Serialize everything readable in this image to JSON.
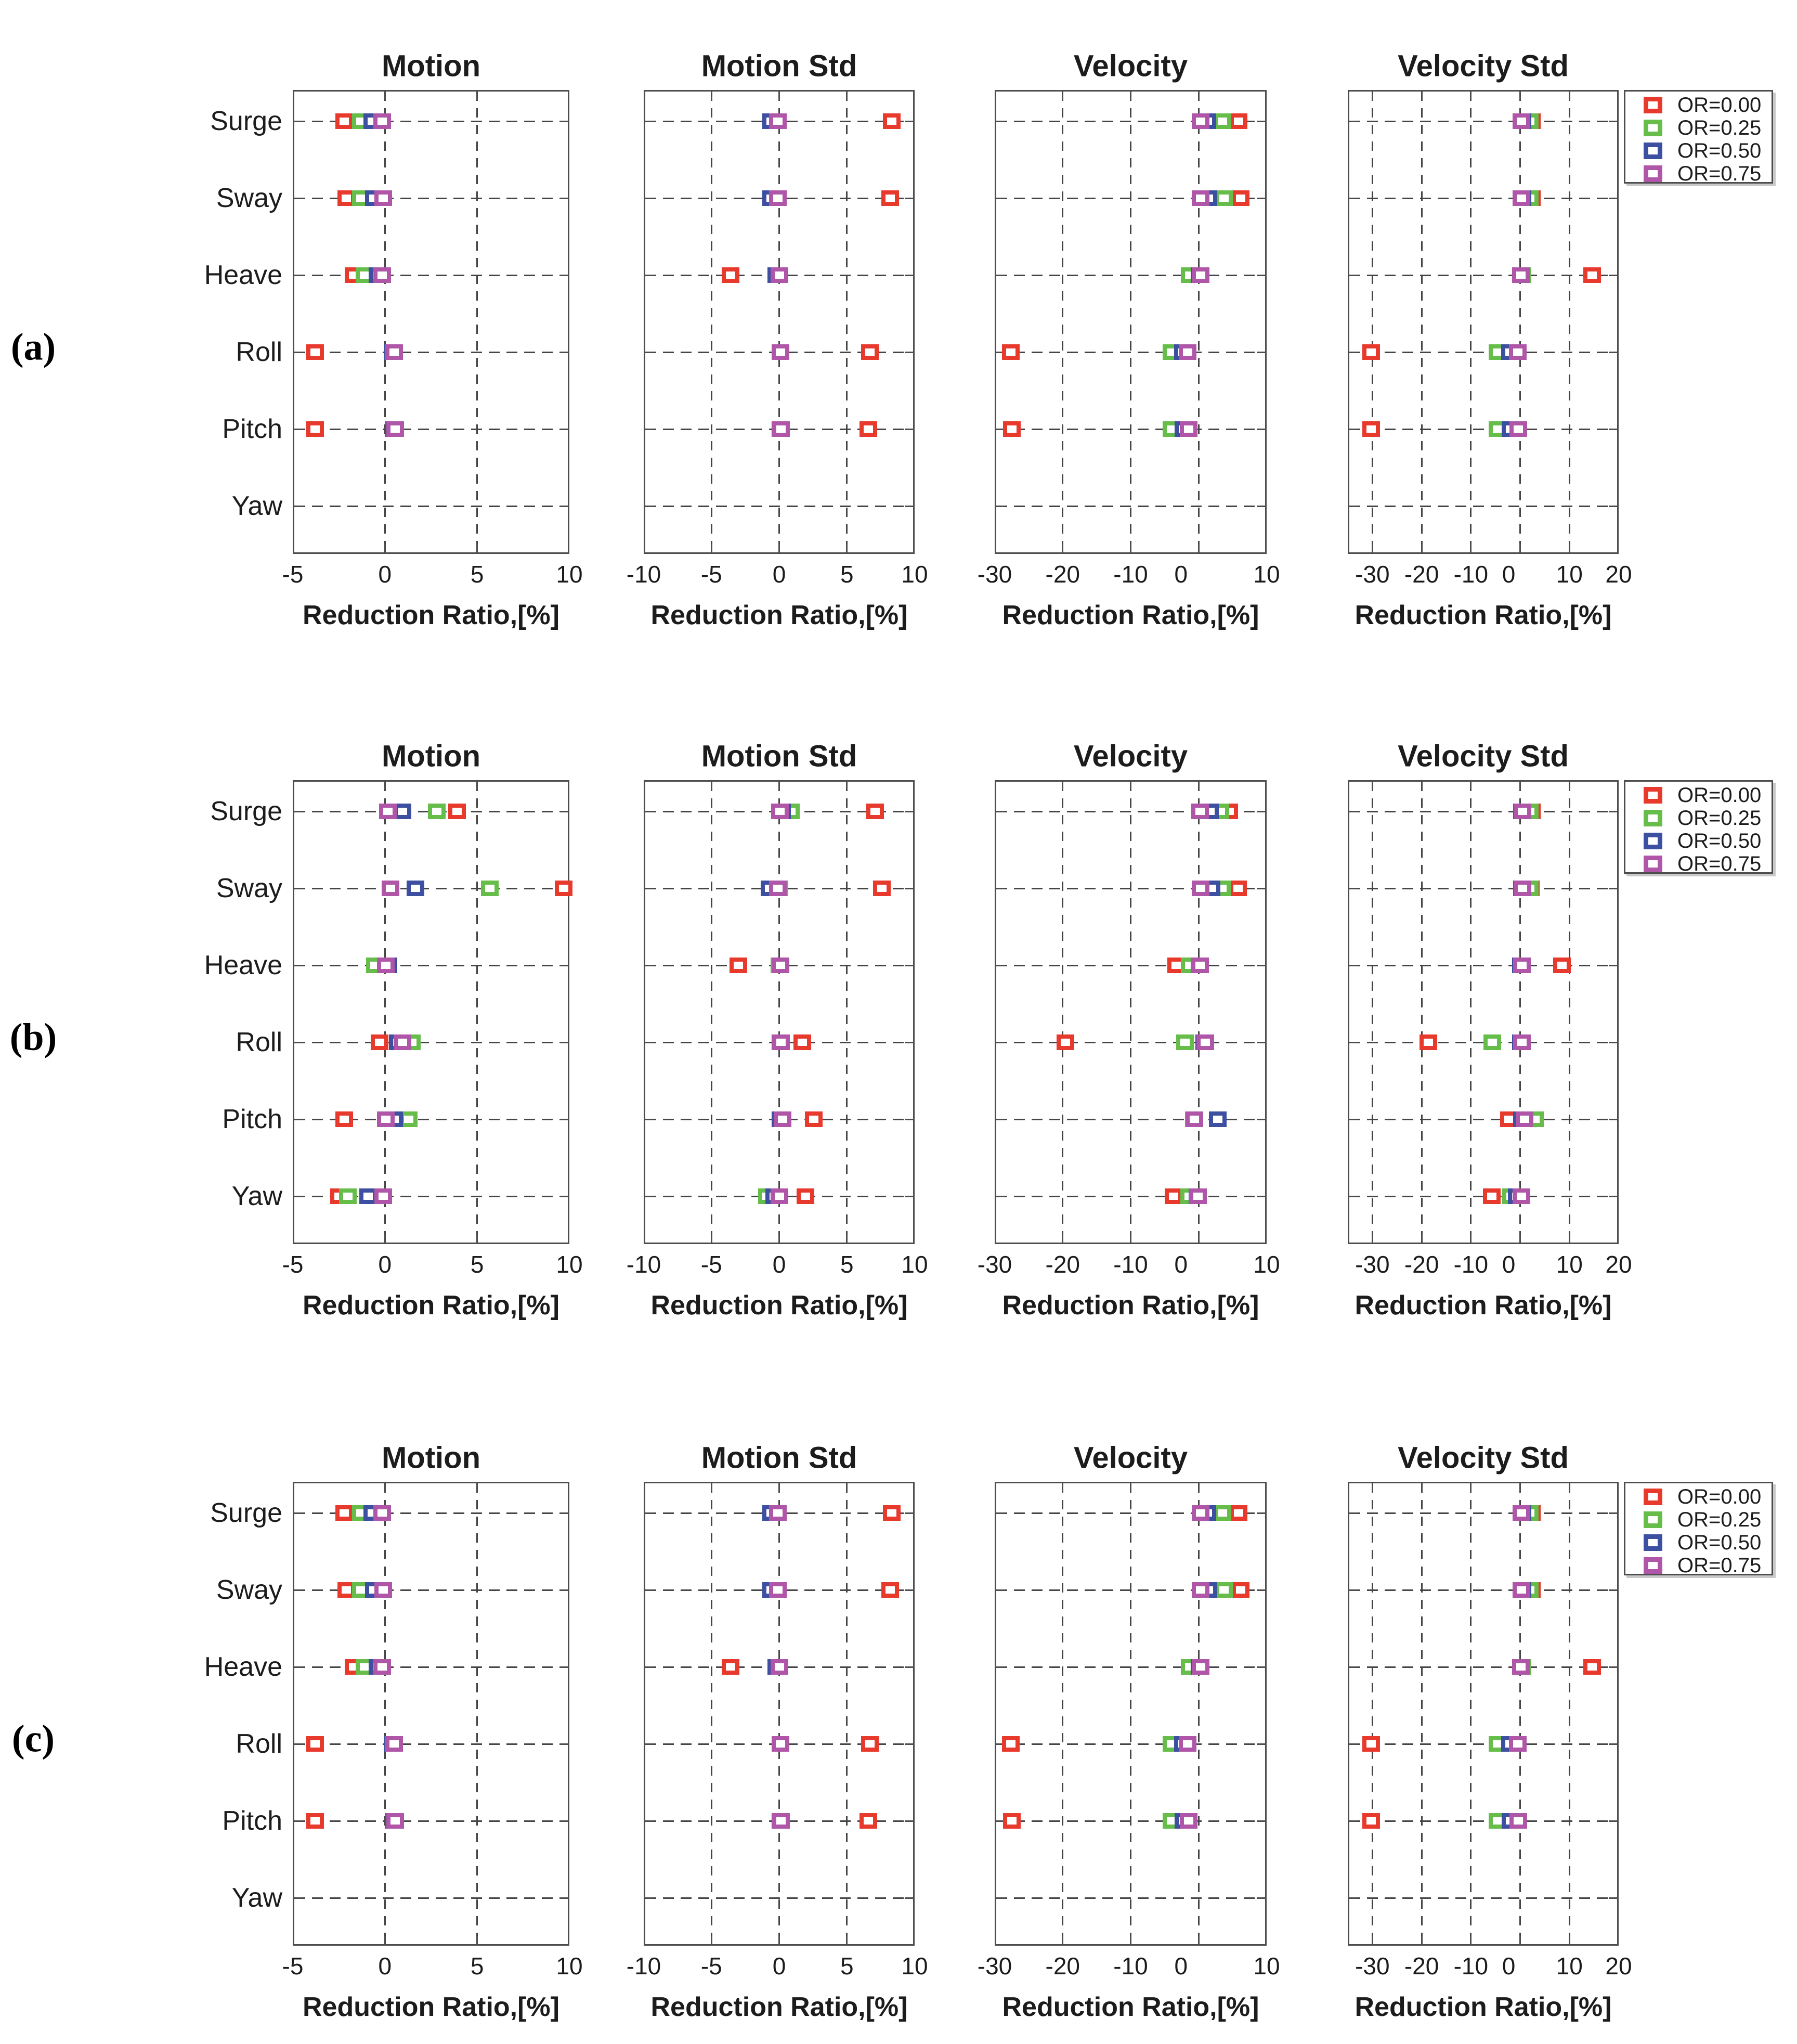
{
  "figure": {
    "row_tags": [
      "(a)",
      "(b)",
      "(c)"
    ],
    "column_titles": [
      "Motion",
      "Motion Std",
      "Velocity",
      "Velocity Std"
    ],
    "x_axis_label": "Reduction Ratio,[%]",
    "categories": [
      "Surge",
      "Sway",
      "Heave",
      "Roll",
      "Pitch",
      "Yaw"
    ],
    "legend": {
      "position": "top-right-outside",
      "entries": [
        {
          "label": "OR=0.00",
          "color": "#e8392d"
        },
        {
          "label": "OR=0.25",
          "color": "#66bd4a"
        },
        {
          "label": "OR=0.50",
          "color": "#3d4fa1"
        },
        {
          "label": "OR=0.75",
          "color": "#af56a8"
        }
      ]
    },
    "colors": {
      "marker_red": "#e8392d",
      "marker_green": "#66bd4a",
      "marker_blue": "#3d4fa1",
      "marker_magenta": "#af56a8",
      "gridline": "#454545",
      "axis_frame": "#4d4d4d",
      "text": "#1c1c1c"
    }
  },
  "chart_data": [
    {
      "panel": "a",
      "type": "scatter",
      "title": "Motion",
      "xlabel": "Reduction Ratio,[%]",
      "xlim": [
        -5,
        10
      ],
      "xticks": [
        -5,
        0,
        5,
        10
      ],
      "grid": true,
      "categories": [
        "Surge",
        "Sway",
        "Heave",
        "Roll",
        "Pitch",
        "Yaw"
      ],
      "series": [
        {
          "name": "OR=0.00",
          "values": [
            -2.2,
            -2.1,
            -1.7,
            -3.8,
            -3.8,
            null
          ]
        },
        {
          "name": "OR=0.25",
          "values": [
            -1.3,
            -1.3,
            -1.1,
            0.45,
            0.5,
            null
          ]
        },
        {
          "name": "OR=0.50",
          "values": [
            -0.7,
            -0.6,
            -0.4,
            0.45,
            0.5,
            null
          ]
        },
        {
          "name": "OR=0.75",
          "values": [
            -0.15,
            -0.1,
            -0.15,
            0.5,
            0.55,
            null
          ]
        }
      ]
    },
    {
      "panel": "a",
      "type": "scatter",
      "title": "Motion Std",
      "xlabel": "Reduction Ratio,[%]",
      "xlim": [
        -10,
        10
      ],
      "xticks": [
        -10,
        -5,
        0,
        5,
        10
      ],
      "grid": true,
      "categories": [
        "Surge",
        "Sway",
        "Heave",
        "Roll",
        "Pitch",
        "Yaw"
      ],
      "series": [
        {
          "name": "OR=0.00",
          "values": [
            8.3,
            8.2,
            -3.6,
            6.7,
            6.6,
            null
          ]
        },
        {
          "name": "OR=0.25",
          "values": [
            -0.1,
            -0.1,
            -0.1,
            0.1,
            0.1,
            null
          ]
        },
        {
          "name": "OR=0.50",
          "values": [
            -0.6,
            -0.6,
            -0.2,
            0.1,
            0.1,
            null
          ]
        },
        {
          "name": "OR=0.75",
          "values": [
            -0.1,
            -0.1,
            0.0,
            0.1,
            0.15,
            null
          ]
        }
      ]
    },
    {
      "panel": "a",
      "type": "scatter",
      "title": "Velocity",
      "xlabel": "Reduction Ratio,[%]",
      "xlim": [
        -30,
        10
      ],
      "xticks": [
        -30,
        -20,
        -10,
        0,
        10
      ],
      "grid": true,
      "categories": [
        "Surge",
        "Sway",
        "Heave",
        "Roll",
        "Pitch",
        "Yaw"
      ],
      "series": [
        {
          "name": "OR=0.00",
          "values": [
            5.9,
            6.2,
            0.1,
            -27.6,
            -27.5,
            null
          ]
        },
        {
          "name": "OR=0.25",
          "values": [
            3.5,
            3.7,
            -1.3,
            -4.0,
            -4.0,
            null
          ]
        },
        {
          "name": "OR=0.50",
          "values": [
            1.3,
            1.4,
            0.1,
            -2.3,
            -2.2,
            null
          ]
        },
        {
          "name": "OR=0.75",
          "values": [
            0.3,
            0.3,
            0.3,
            -1.6,
            -1.5,
            null
          ]
        }
      ]
    },
    {
      "panel": "a",
      "type": "scatter",
      "title": "Velocity Std",
      "xlabel": "Reduction Ratio,[%]",
      "xlim": [
        -35,
        20
      ],
      "xticks": [
        -30,
        -20,
        -10,
        0,
        10,
        20
      ],
      "grid": true,
      "categories": [
        "Surge",
        "Sway",
        "Heave",
        "Roll",
        "Pitch",
        "Yaw"
      ],
      "series": [
        {
          "name": "OR=0.00",
          "values": [
            2.4,
            2.4,
            14.6,
            -30.3,
            -30.3,
            null
          ]
        },
        {
          "name": "OR=0.25",
          "values": [
            2.0,
            2.0,
            0.4,
            -4.6,
            -4.6,
            null
          ]
        },
        {
          "name": "OR=0.50",
          "values": [
            0.5,
            0.5,
            0.2,
            -2.1,
            -2.0,
            null
          ]
        },
        {
          "name": "OR=0.75",
          "values": [
            0.3,
            0.3,
            0.2,
            -0.5,
            -0.4,
            null
          ]
        }
      ]
    },
    {
      "panel": "b",
      "type": "scatter",
      "title": "Motion",
      "xlabel": "Reduction Ratio,[%]",
      "xlim": [
        -5,
        10
      ],
      "xticks": [
        -5,
        0,
        5,
        10
      ],
      "grid": true,
      "categories": [
        "Surge",
        "Sway",
        "Heave",
        "Roll",
        "Pitch",
        "Yaw"
      ],
      "series": [
        {
          "name": "OR=0.00",
          "values": [
            3.9,
            9.7,
            -0.35,
            -0.3,
            -2.2,
            -2.5
          ]
        },
        {
          "name": "OR=0.25",
          "values": [
            2.8,
            5.7,
            -0.55,
            1.45,
            1.3,
            -2.0
          ]
        },
        {
          "name": "OR=0.50",
          "values": [
            0.95,
            1.65,
            0.2,
            0.7,
            0.5,
            -0.9
          ]
        },
        {
          "name": "OR=0.75",
          "values": [
            0.15,
            0.3,
            0.05,
            0.95,
            0.05,
            -0.1
          ]
        }
      ]
    },
    {
      "panel": "b",
      "type": "scatter",
      "title": "Motion Std",
      "xlabel": "Reduction Ratio,[%]",
      "xlim": [
        -10,
        10
      ],
      "xticks": [
        -10,
        -5,
        0,
        5,
        10
      ],
      "grid": true,
      "categories": [
        "Surge",
        "Sway",
        "Heave",
        "Roll",
        "Pitch",
        "Yaw"
      ],
      "series": [
        {
          "name": "OR=0.00",
          "values": [
            7.1,
            7.6,
            -3.0,
            1.7,
            2.55,
            1.95
          ]
        },
        {
          "name": "OR=0.25",
          "values": [
            0.85,
            0.0,
            0.0,
            0.1,
            0.1,
            -0.9
          ]
        },
        {
          "name": "OR=0.50",
          "values": [
            0.2,
            -0.7,
            0.1,
            0.1,
            0.1,
            -0.35
          ]
        },
        {
          "name": "OR=0.75",
          "values": [
            0.05,
            -0.1,
            0.1,
            0.15,
            0.25,
            0.0
          ]
        }
      ]
    },
    {
      "panel": "b",
      "type": "scatter",
      "title": "Velocity",
      "xlabel": "Reduction Ratio,[%]",
      "xlim": [
        -30,
        10
      ],
      "xticks": [
        -30,
        -20,
        -10,
        0,
        10
      ],
      "grid": true,
      "categories": [
        "Surge",
        "Sway",
        "Heave",
        "Roll",
        "Pitch",
        "Yaw"
      ],
      "series": [
        {
          "name": "OR=0.00",
          "values": [
            4.5,
            5.8,
            -3.3,
            -19.6,
            -0.6,
            -3.7
          ]
        },
        {
          "name": "OR=0.25",
          "values": [
            3.2,
            3.4,
            -1.3,
            -2.0,
            -0.7,
            -1.4
          ]
        },
        {
          "name": "OR=0.50",
          "values": [
            1.7,
            1.9,
            0.1,
            0.8,
            2.8,
            -0.2
          ]
        },
        {
          "name": "OR=0.75",
          "values": [
            0.2,
            0.25,
            0.2,
            1.0,
            -0.65,
            -0.1
          ]
        }
      ]
    },
    {
      "panel": "b",
      "type": "scatter",
      "title": "Velocity Std",
      "xlabel": "Reduction Ratio,[%]",
      "xlim": [
        -35,
        20
      ],
      "xticks": [
        -30,
        -20,
        -10,
        0,
        10,
        20
      ],
      "grid": true,
      "categories": [
        "Surge",
        "Sway",
        "Heave",
        "Roll",
        "Pitch",
        "Yaw"
      ],
      "series": [
        {
          "name": "OR=0.00",
          "values": [
            2.4,
            2.2,
            8.5,
            -18.6,
            -2.3,
            -5.8
          ]
        },
        {
          "name": "OR=0.25",
          "values": [
            2.0,
            1.9,
            0.4,
            -5.6,
            3.0,
            -1.9
          ]
        },
        {
          "name": "OR=0.50",
          "values": [
            0.4,
            0.4,
            0.2,
            0.2,
            0.4,
            -0.7
          ]
        },
        {
          "name": "OR=0.75",
          "values": [
            0.5,
            0.5,
            0.4,
            0.4,
            0.9,
            0.3
          ]
        }
      ]
    },
    {
      "panel": "c",
      "type": "scatter",
      "title": "Motion",
      "xlabel": "Reduction Ratio,[%]",
      "xlim": [
        -5,
        10
      ],
      "xticks": [
        -5,
        0,
        5,
        10
      ],
      "grid": true,
      "categories": [
        "Surge",
        "Sway",
        "Heave",
        "Roll",
        "Pitch",
        "Yaw"
      ],
      "series": [
        {
          "name": "OR=0.00",
          "values": [
            -2.2,
            -2.1,
            -1.7,
            -3.8,
            -3.8,
            null
          ]
        },
        {
          "name": "OR=0.25",
          "values": [
            -1.3,
            -1.3,
            -1.1,
            0.45,
            0.5,
            null
          ]
        },
        {
          "name": "OR=0.50",
          "values": [
            -0.7,
            -0.6,
            -0.4,
            0.45,
            0.5,
            null
          ]
        },
        {
          "name": "OR=0.75",
          "values": [
            -0.15,
            -0.1,
            -0.15,
            0.5,
            0.55,
            null
          ]
        }
      ]
    },
    {
      "panel": "c",
      "type": "scatter",
      "title": "Motion Std",
      "xlabel": "Reduction Ratio,[%]",
      "xlim": [
        -10,
        10
      ],
      "xticks": [
        -10,
        -5,
        0,
        5,
        10
      ],
      "grid": true,
      "categories": [
        "Surge",
        "Sway",
        "Heave",
        "Roll",
        "Pitch",
        "Yaw"
      ],
      "series": [
        {
          "name": "OR=0.00",
          "values": [
            8.3,
            8.2,
            -3.6,
            6.7,
            6.6,
            null
          ]
        },
        {
          "name": "OR=0.25",
          "values": [
            -0.1,
            -0.1,
            -0.1,
            0.1,
            0.1,
            null
          ]
        },
        {
          "name": "OR=0.50",
          "values": [
            -0.6,
            -0.6,
            -0.2,
            0.1,
            0.1,
            null
          ]
        },
        {
          "name": "OR=0.75",
          "values": [
            -0.1,
            -0.1,
            0.0,
            0.1,
            0.15,
            null
          ]
        }
      ]
    },
    {
      "panel": "c",
      "type": "scatter",
      "title": "Velocity",
      "xlabel": "Reduction Ratio,[%]",
      "xlim": [
        -30,
        10
      ],
      "xticks": [
        -30,
        -20,
        -10,
        0,
        10
      ],
      "grid": true,
      "categories": [
        "Surge",
        "Sway",
        "Heave",
        "Roll",
        "Pitch",
        "Yaw"
      ],
      "series": [
        {
          "name": "OR=0.00",
          "values": [
            5.9,
            6.2,
            0.1,
            -27.6,
            -27.5,
            null
          ]
        },
        {
          "name": "OR=0.25",
          "values": [
            3.5,
            3.7,
            -1.3,
            -4.0,
            -4.0,
            null
          ]
        },
        {
          "name": "OR=0.50",
          "values": [
            1.3,
            1.4,
            0.1,
            -2.3,
            -2.2,
            null
          ]
        },
        {
          "name": "OR=0.75",
          "values": [
            0.3,
            0.3,
            0.3,
            -1.6,
            -1.5,
            null
          ]
        }
      ]
    },
    {
      "panel": "c",
      "type": "scatter",
      "title": "Velocity Std",
      "xlabel": "Reduction Ratio,[%]",
      "xlim": [
        -35,
        20
      ],
      "xticks": [
        -30,
        -20,
        -10,
        0,
        10,
        20
      ],
      "grid": true,
      "categories": [
        "Surge",
        "Sway",
        "Heave",
        "Roll",
        "Pitch",
        "Yaw"
      ],
      "series": [
        {
          "name": "OR=0.00",
          "values": [
            2.4,
            2.4,
            14.6,
            -30.3,
            -30.3,
            null
          ]
        },
        {
          "name": "OR=0.25",
          "values": [
            2.0,
            2.0,
            0.4,
            -4.6,
            -4.6,
            null
          ]
        },
        {
          "name": "OR=0.50",
          "values": [
            0.5,
            0.5,
            0.2,
            -2.1,
            -2.0,
            null
          ]
        },
        {
          "name": "OR=0.75",
          "values": [
            0.3,
            0.3,
            0.2,
            -0.5,
            -0.4,
            null
          ]
        }
      ]
    }
  ]
}
